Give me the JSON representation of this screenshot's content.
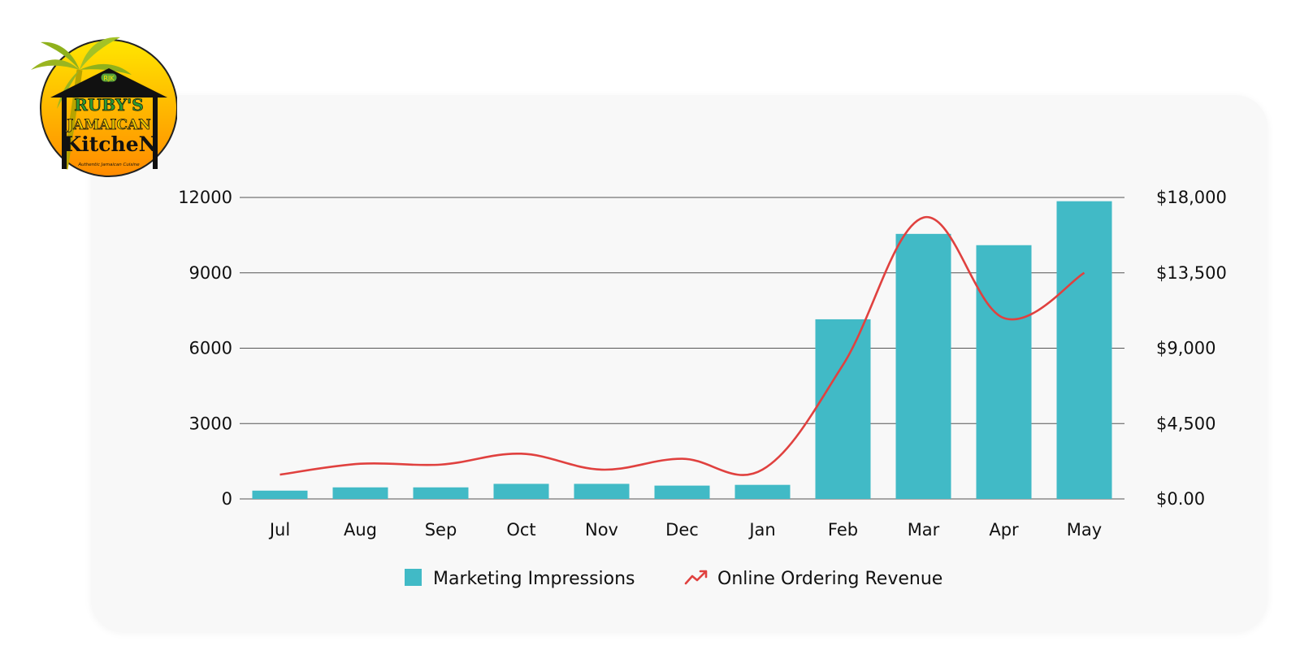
{
  "brand": {
    "line1": "RUBY'S",
    "line2": "JAMAICAN",
    "line3": "KitcheN",
    "tagline": "Authentic Jamaican Cuisine",
    "badge": "RJK"
  },
  "chart_data": {
    "type": "bar",
    "categories": [
      "Jul",
      "Aug",
      "Sep",
      "Oct",
      "Nov",
      "Dec",
      "Jan",
      "Feb",
      "Mar",
      "Apr",
      "May"
    ],
    "series": [
      {
        "name": "Marketing Impressions",
        "type": "bar",
        "axis": "left",
        "color": "#41bac6",
        "values": [
          330,
          460,
          460,
          600,
          600,
          530,
          560,
          7150,
          10550,
          10100,
          11850
        ]
      },
      {
        "name": "Online Ordering Revenue",
        "type": "line",
        "axis": "right",
        "color": "#e0413f",
        "values": [
          1450,
          2100,
          2050,
          2700,
          1750,
          2400,
          1750,
          8000,
          16800,
          10800,
          13500
        ]
      }
    ],
    "y_left": {
      "min": 0,
      "max": 12000,
      "ticks": [
        "0",
        "3000",
        "6000",
        "9000",
        "12000"
      ],
      "values": [
        0,
        3000,
        6000,
        9000,
        12000
      ]
    },
    "y_right": {
      "min": 0,
      "max": 18000,
      "ticks": [
        "$0.00",
        "$4,500",
        "$9,000",
        "$13,500",
        "$18,000"
      ],
      "values": [
        0,
        4500,
        9000,
        13500,
        18000
      ]
    },
    "grid": "horizontal",
    "legend": "bottom-center"
  }
}
